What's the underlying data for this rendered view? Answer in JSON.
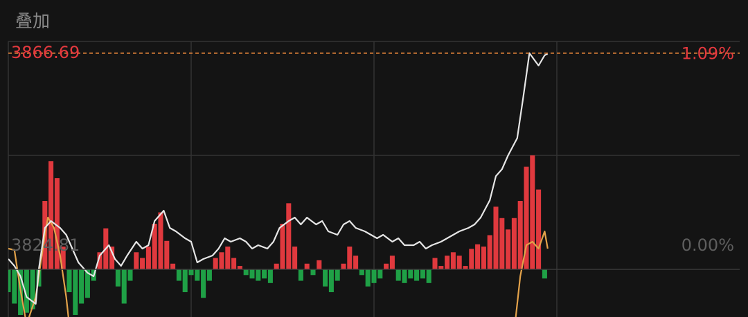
{
  "title": "叠加",
  "chart_data": [
    {
      "type": "line",
      "xlim": [
        0,
        240
      ],
      "ylim": [
        3815.58,
        3868.96
      ],
      "yticks": [
        3866.69,
        3824.81
      ],
      "y2lim": [
        -0.241,
        1.154
      ],
      "y2ticks": [
        {
          "value": 1.09,
          "label": "1.09%"
        },
        {
          "value": 0,
          "label": "0.00%"
        }
      ],
      "series": [
        {
          "color": "#e6e6e6",
          "x": [
            0,
            2,
            4,
            6,
            9,
            10,
            12,
            14,
            17,
            19,
            21,
            23,
            26,
            28,
            30,
            33,
            35,
            37,
            39,
            42,
            44,
            46,
            48,
            51,
            53,
            55,
            58,
            60,
            62,
            64,
            67,
            69,
            71,
            73,
            76,
            78,
            80,
            82,
            85,
            87,
            89,
            92,
            94,
            96,
            98,
            101,
            103,
            105,
            108,
            110,
            112,
            114,
            117,
            119,
            121,
            123,
            126,
            128,
            130,
            133,
            135,
            137,
            139,
            142,
            144,
            146,
            148,
            151,
            153,
            155,
            158,
            160,
            162,
            164,
            167,
            169,
            171,
            174,
            176,
            177
          ],
          "values": [
            3826.82,
            3825.48,
            3823.47,
            3819.46,
            3818.12,
            3824.81,
            3832.84,
            3834.18,
            3832.84,
            3831.5,
            3828.82,
            3826.15,
            3824.14,
            3823.47,
            3827.49,
            3829.49,
            3826.82,
            3825.48,
            3827.49,
            3830.16,
            3828.82,
            3829.49,
            3834.18,
            3836.18,
            3832.84,
            3832.17,
            3830.83,
            3830.16,
            3826.15,
            3826.82,
            3827.49,
            3828.82,
            3830.83,
            3830.16,
            3830.83,
            3830.16,
            3828.82,
            3829.49,
            3828.82,
            3830.16,
            3832.84,
            3834.18,
            3834.85,
            3833.51,
            3834.85,
            3833.51,
            3834.18,
            3832.17,
            3831.5,
            3833.51,
            3834.18,
            3832.84,
            3832.17,
            3831.5,
            3830.83,
            3831.5,
            3830.16,
            3830.83,
            3829.49,
            3829.49,
            3830.16,
            3828.82,
            3829.49,
            3830.16,
            3830.83,
            3831.5,
            3832.17,
            3832.84,
            3833.51,
            3834.85,
            3838.19,
            3842.87,
            3844.21,
            3846.89,
            3850.23,
            3858.26,
            3866.69,
            3864.28,
            3866.29,
            3866.56
          ]
        },
        {
          "color": "#e3a24a",
          "x": [
            0,
            2,
            4,
            6,
            9,
            10,
            12,
            13,
            15,
            17,
            19,
            20,
            100,
            166,
            168,
            170,
            172,
            174,
            176,
            177
          ],
          "values": [
            3828.82,
            3828.56,
            3820.8,
            3814.11,
            3819.46,
            3823.47,
            3831.5,
            3834.85,
            3832.84,
            3827.49,
            3819.46,
            3814.11,
            null,
            3812.77,
            3823.47,
            3829.49,
            3830.16,
            3828.82,
            3832.17,
            3828.82
          ]
        }
      ]
    },
    {
      "type": "bar",
      "xlim": [
        0,
        240
      ],
      "ylim": [
        -41.8,
        200
      ],
      "color": "#e0393e",
      "negative_color": "#1fa046",
      "x": [
        0,
        2,
        4,
        6,
        8,
        10,
        12,
        14,
        16,
        18,
        20,
        22,
        24,
        26,
        28,
        30,
        32,
        34,
        36,
        38,
        40,
        42,
        44,
        46,
        48,
        50,
        52,
        54,
        56,
        58,
        60,
        62,
        64,
        66,
        68,
        70,
        72,
        74,
        76,
        78,
        80,
        82,
        84,
        86,
        88,
        90,
        92,
        94,
        96,
        98,
        100,
        102,
        104,
        106,
        108,
        110,
        112,
        114,
        116,
        118,
        120,
        122,
        124,
        126,
        128,
        130,
        132,
        134,
        136,
        138,
        140,
        142,
        144,
        146,
        148,
        150,
        152,
        154,
        156,
        158,
        160,
        162,
        164,
        166,
        168,
        170,
        172,
        174,
        176
      ],
      "values": [
        -20,
        -30,
        -40,
        -38,
        -35,
        -15,
        60,
        95,
        80,
        20,
        -20,
        -40,
        -30,
        -25,
        -10,
        15,
        36,
        20,
        -15,
        -30,
        -10,
        15,
        10,
        20,
        40,
        50,
        25,
        5,
        -10,
        -20,
        -5,
        -10,
        -25,
        -10,
        10,
        15,
        20,
        10,
        3,
        -5,
        -8,
        -10,
        -8,
        -12,
        5,
        40,
        58,
        20,
        -10,
        5,
        -5,
        8,
        -15,
        -20,
        -10,
        5,
        20,
        12,
        -5,
        -15,
        -12,
        -8,
        5,
        12,
        -10,
        -12,
        -8,
        -10,
        -8,
        -12,
        10,
        3,
        12,
        15,
        12,
        3,
        18,
        22,
        20,
        30,
        55,
        45,
        35,
        45,
        60,
        90,
        100,
        70,
        -8
      ]
    }
  ]
}
